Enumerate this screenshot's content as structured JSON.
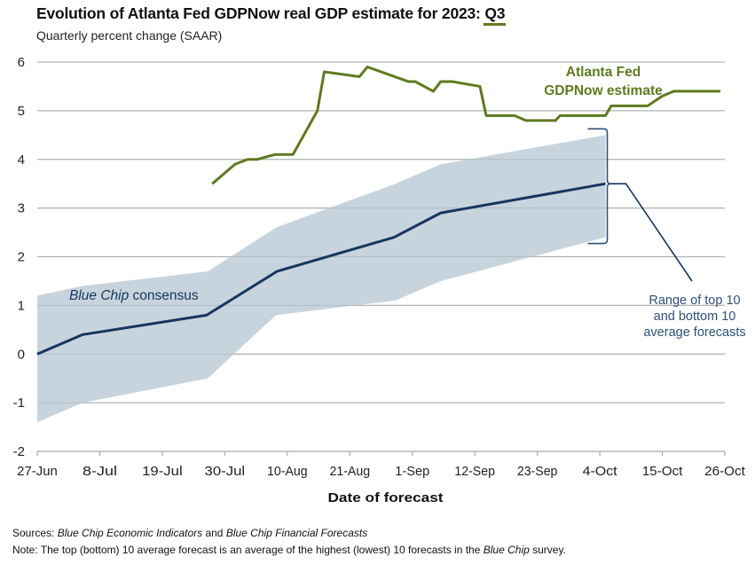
{
  "header": {
    "title_prefix": "Evolution of Atlanta Fed GDPNow real GDP estimate for 2023: ",
    "title_quarter": "Q3",
    "subtitle": "Quarterly percent change (SAAR)"
  },
  "footer": {
    "sources_label": "Sources:",
    "sources_part1": "Blue Chip Economic Indicators",
    "sources_and": " and ",
    "sources_part2": "Blue Chip Financial Forecasts",
    "note_label": "Note:",
    "note_text1": " The top (bottom) 10 average forecast is an average of the highest (lowest) 10 forecasts in the ",
    "note_italic": "Blue Chip",
    "note_text2": " survey."
  },
  "colors": {
    "gdpnow": "#5f7a1f",
    "bluechip": "#16365f",
    "band": "#c5d2db",
    "grid": "#bdbdbd",
    "range_label": "#2e5077"
  },
  "chart_data": {
    "type": "line",
    "title": "Evolution of Atlanta Fed GDPNow real GDP estimate for 2023: Q3",
    "subtitle": "Quarterly percent change (SAAR)",
    "xlabel": "Date of forecast",
    "ylabel": "",
    "x_unit": "days since 27-Jun",
    "xlim": [
      0,
      121
    ],
    "ylim": [
      -2,
      6
    ],
    "yticks": [
      6,
      5,
      4,
      3,
      2,
      1,
      0,
      -1,
      -2
    ],
    "xticks": [
      {
        "day": 0,
        "label": "27-Jun"
      },
      {
        "day": 11,
        "label": "8-Jul"
      },
      {
        "day": 22,
        "label": "19-Jul"
      },
      {
        "day": 33,
        "label": "30-Jul"
      },
      {
        "day": 44,
        "label": "10-Aug"
      },
      {
        "day": 55,
        "label": "21-Aug"
      },
      {
        "day": 66,
        "label": "1-Sep"
      },
      {
        "day": 77,
        "label": "12-Sep"
      },
      {
        "day": 88,
        "label": "23-Sep"
      },
      {
        "day": 99,
        "label": "4-Oct"
      },
      {
        "day": 110,
        "label": "15-Oct"
      },
      {
        "day": 121,
        "label": "26-Oct"
      }
    ],
    "grid": true,
    "series": [
      {
        "name": "Atlanta Fed GDPNow estimate",
        "label_lines": [
          "Atlanta Fed",
          "GDPNow estimate"
        ],
        "type": "line",
        "x": [
          30.8,
          34.8,
          37,
          38.7,
          41.8,
          45,
          49.3,
          50.5,
          56.7,
          58.1,
          65.3,
          66.5,
          69.7,
          71,
          73,
          77.9,
          79,
          84,
          86,
          91.2,
          92,
          100,
          101,
          107.4,
          110,
          112,
          120.2
        ],
        "y": [
          3.5,
          3.9,
          4.0,
          4.0,
          4.1,
          4.1,
          5.0,
          5.8,
          5.7,
          5.9,
          5.6,
          5.6,
          5.4,
          5.6,
          5.6,
          5.5,
          4.9,
          4.9,
          4.8,
          4.8,
          4.9,
          4.9,
          5.1,
          5.1,
          5.3,
          5.4,
          5.4
        ]
      },
      {
        "name": "Blue Chip consensus",
        "label_italic": "Blue Chip",
        "label_rest": " consensus",
        "type": "line",
        "x": [
          0,
          8,
          29.8,
          42.2,
          62.8,
          71,
          100
        ],
        "y": [
          0.0,
          0.4,
          0.8,
          1.7,
          2.4,
          2.9,
          3.5
        ]
      },
      {
        "name": "Range of top 10 and bottom 10 average forecasts",
        "label_lines": [
          "Range of top 10",
          "and bottom 10",
          "average forecasts"
        ],
        "type": "area",
        "x": [
          0,
          8,
          30,
          42,
          63,
          71,
          100
        ],
        "upper": [
          1.2,
          1.4,
          1.7,
          2.6,
          3.5,
          3.9,
          4.5
        ],
        "lower": [
          -1.4,
          -1.0,
          -0.5,
          0.8,
          1.1,
          1.5,
          2.4
        ]
      }
    ]
  }
}
